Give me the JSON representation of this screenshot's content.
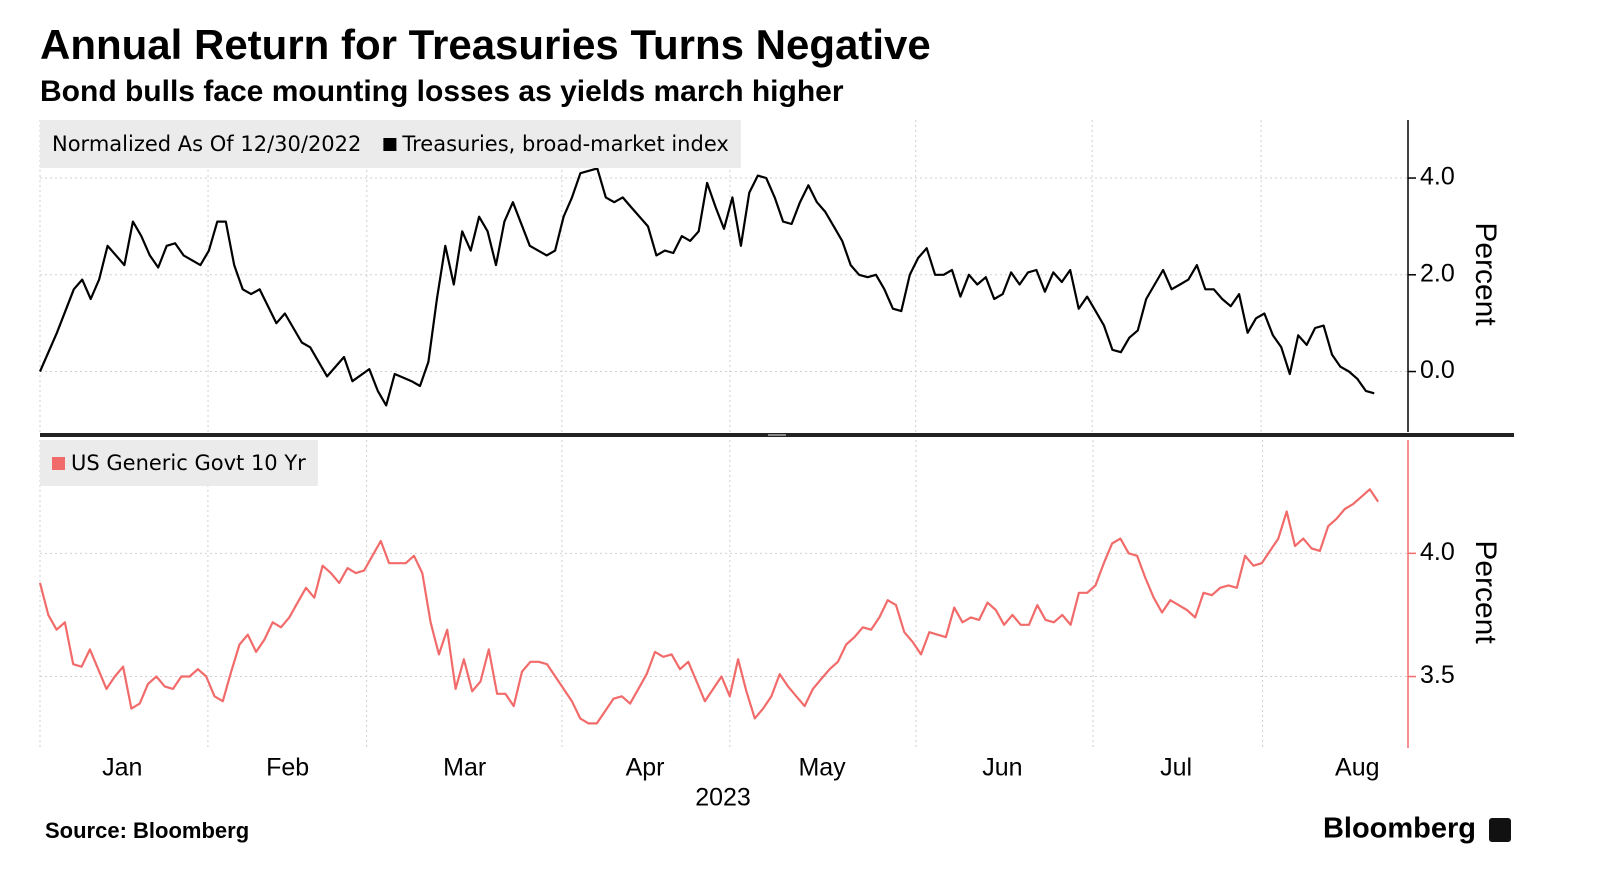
{
  "chart_data": [
    {
      "type": "line",
      "title": "Annual Return for Treasuries Turns Negative",
      "subtitle": "Bond bulls face mounting losses as yields march higher",
      "note": "Normalized As Of 12/30/2022",
      "ylabel": "Percent",
      "xlim": [
        0,
        162
      ],
      "xgrid": [
        0,
        19.9,
        38.7,
        61.8,
        81.7,
        103.7,
        124.6,
        144.6
      ],
      "ylim": [
        -1.25,
        5.2
      ],
      "yticks": [
        {
          "value": 0,
          "label": "0.0"
        },
        {
          "value": 2,
          "label": "2.0"
        },
        {
          "value": 4,
          "label": "4.0"
        }
      ],
      "grid": true,
      "axis_color": "#000000",
      "x": [
        0,
        2,
        4,
        5,
        6,
        7,
        8,
        10,
        11,
        12,
        13,
        14,
        15,
        16,
        17,
        19,
        20,
        21,
        22,
        23,
        24,
        25,
        26,
        28,
        29,
        31,
        32,
        34,
        36,
        37,
        39,
        40,
        41,
        42,
        44,
        45,
        46,
        47,
        48,
        49,
        50,
        51,
        52,
        53,
        54,
        55,
        56,
        58,
        60,
        61,
        62,
        63,
        64,
        66,
        67,
        68,
        69,
        70,
        72,
        73,
        74,
        75,
        76,
        77,
        78,
        79,
        80,
        81,
        82,
        83,
        84,
        85,
        86,
        87,
        88,
        89,
        90,
        91,
        92,
        93,
        94,
        95,
        96,
        97,
        98,
        99,
        100,
        101,
        102,
        103,
        104,
        105,
        106,
        107,
        108,
        109,
        110,
        111,
        112,
        113,
        114,
        115,
        116,
        117,
        118,
        119,
        120,
        121,
        122,
        123,
        124,
        125,
        126,
        127,
        128,
        129,
        130,
        131,
        133,
        134,
        135,
        136,
        137,
        138,
        139,
        140,
        141,
        142,
        143,
        144,
        145,
        146,
        147,
        148,
        149,
        150,
        151,
        152,
        153,
        154,
        155,
        156,
        157,
        158
      ],
      "series": [
        {
          "name": "Treasuries, broad-market index",
          "color": "#000000",
          "values": [
            0,
            0.8,
            1.7,
            1.9,
            1.5,
            1.9,
            2.6,
            2.2,
            3.1,
            2.8,
            2.4,
            2.15,
            2.6,
            2.65,
            2.4,
            2.2,
            2.5,
            3.1,
            3.1,
            2.2,
            1.7,
            1.6,
            1.7,
            1.0,
            1.2,
            0.6,
            0.5,
            -0.1,
            0.3,
            -0.2,
            0.05,
            -0.4,
            -0.7,
            -0.05,
            -0.2,
            -0.3,
            0.2,
            1.5,
            2.6,
            1.8,
            2.9,
            2.5,
            3.2,
            2.9,
            2.2,
            3.1,
            3.5,
            2.6,
            2.4,
            2.5,
            3.2,
            3.6,
            4.1,
            4.2,
            3.6,
            3.5,
            3.6,
            3.4,
            3.0,
            2.4,
            2.5,
            2.45,
            2.8,
            2.7,
            2.9,
            3.9,
            3.4,
            2.95,
            3.6,
            2.6,
            3.7,
            4.05,
            4.0,
            3.6,
            3.1,
            3.05,
            3.5,
            3.85,
            3.5,
            3.3,
            3.0,
            2.7,
            2.2,
            2.0,
            1.95,
            2.0,
            1.7,
            1.3,
            1.25,
            2.0,
            2.35,
            2.55,
            2.0,
            2.0,
            2.1,
            1.55,
            2.0,
            1.8,
            1.95,
            1.5,
            1.6,
            2.05,
            1.8,
            2.05,
            2.1,
            1.65,
            2.05,
            1.85,
            2.1,
            1.3,
            1.55,
            1.25,
            0.95,
            0.45,
            0.4,
            0.7,
            0.85,
            1.5,
            2.1,
            1.7,
            1.8,
            1.9,
            2.2,
            1.7,
            1.7,
            1.5,
            1.35,
            1.6,
            0.8,
            1.1,
            1.2,
            0.75,
            0.5,
            -0.05,
            0.75,
            0.55,
            0.9,
            0.95,
            0.35,
            0.1,
            0.0,
            -0.15,
            -0.4,
            -0.45
          ]
        }
      ]
    },
    {
      "type": "line",
      "ylabel": "Percent",
      "xlabel": "2023",
      "xlim": [
        0,
        164.6
      ],
      "xgrid": [
        0,
        20.2,
        39.3,
        62.8,
        83.0,
        105.4,
        126.7,
        147.1
      ],
      "xticks": [
        {
          "value": 9.9,
          "label": "Jan"
        },
        {
          "value": 29.8,
          "label": "Feb"
        },
        {
          "value": 51.1,
          "label": "Mar"
        },
        {
          "value": 72.8,
          "label": "Apr"
        },
        {
          "value": 94.1,
          "label": "May"
        },
        {
          "value": 115.8,
          "label": "Jun"
        },
        {
          "value": 136.7,
          "label": "Jul"
        },
        {
          "value": 158.5,
          "label": "Aug"
        }
      ],
      "ylim": [
        3.21,
        4.46
      ],
      "yticks": [
        {
          "value": 3.5,
          "label": "3.5"
        },
        {
          "value": 4,
          "label": "4.0"
        }
      ],
      "grid": true,
      "axis_color": "#f26b6b",
      "x": [
        0,
        1,
        2,
        3,
        4,
        5,
        6,
        7,
        8,
        9,
        10,
        11,
        12,
        13,
        14,
        15,
        16,
        17,
        18,
        19,
        20,
        21,
        22,
        23,
        24,
        25,
        26,
        27,
        28,
        29,
        30,
        31,
        32,
        33,
        34,
        35,
        36,
        37,
        38,
        39,
        40,
        41,
        42,
        43,
        44,
        45,
        46,
        47,
        48,
        49,
        50,
        51,
        52,
        53,
        54,
        55,
        56,
        57,
        58,
        59,
        60,
        61,
        62,
        63,
        64,
        65,
        66,
        67,
        68,
        69,
        70,
        71,
        72,
        73,
        74,
        75,
        76,
        77,
        78,
        79,
        80,
        81,
        82,
        83,
        84,
        85,
        86,
        87,
        88,
        89,
        90,
        91,
        92,
        93,
        94,
        95,
        96,
        97,
        98,
        99,
        100,
        101,
        102,
        103,
        104,
        105,
        106,
        107,
        108,
        109,
        110,
        111,
        112,
        113,
        114,
        115,
        116,
        117,
        118,
        119,
        120,
        121,
        122,
        123,
        124,
        125,
        126,
        127,
        128,
        129,
        130,
        131,
        132,
        133,
        134,
        135,
        136,
        137,
        138,
        139,
        140,
        141,
        142,
        143,
        144,
        145,
        146,
        147,
        148,
        149,
        150,
        151,
        152,
        153,
        154,
        155,
        156,
        157,
        158,
        159,
        160,
        161
      ],
      "series": [
        {
          "name": "US Generic Govt 10 Yr",
          "color": "#f26b6b",
          "values": [
            3.88,
            3.75,
            3.69,
            3.72,
            3.55,
            3.54,
            3.61,
            3.53,
            3.45,
            3.5,
            3.54,
            3.37,
            3.39,
            3.47,
            3.5,
            3.46,
            3.45,
            3.5,
            3.5,
            3.53,
            3.5,
            3.42,
            3.4,
            3.52,
            3.63,
            3.67,
            3.6,
            3.65,
            3.72,
            3.7,
            3.74,
            3.8,
            3.86,
            3.82,
            3.95,
            3.92,
            3.88,
            3.94,
            3.92,
            3.93,
            3.99,
            4.05,
            3.96,
            3.96,
            3.96,
            3.99,
            3.92,
            3.72,
            3.59,
            3.69,
            3.45,
            3.57,
            3.44,
            3.48,
            3.61,
            3.43,
            3.43,
            3.38,
            3.52,
            3.56,
            3.56,
            3.55,
            3.5,
            3.45,
            3.4,
            3.33,
            3.31,
            3.31,
            3.36,
            3.41,
            3.42,
            3.39,
            3.45,
            3.51,
            3.6,
            3.58,
            3.59,
            3.53,
            3.56,
            3.48,
            3.4,
            3.45,
            3.5,
            3.42,
            3.57,
            3.44,
            3.33,
            3.37,
            3.42,
            3.51,
            3.46,
            3.42,
            3.38,
            3.45,
            3.49,
            3.53,
            3.56,
            3.63,
            3.66,
            3.7,
            3.69,
            3.74,
            3.81,
            3.79,
            3.68,
            3.64,
            3.59,
            3.68,
            3.67,
            3.66,
            3.78,
            3.72,
            3.74,
            3.73,
            3.8,
            3.77,
            3.71,
            3.75,
            3.71,
            3.71,
            3.79,
            3.73,
            3.72,
            3.75,
            3.71,
            3.84,
            3.84,
            3.87,
            3.96,
            4.04,
            4.06,
            4.0,
            3.99,
            3.9,
            3.82,
            3.76,
            3.81,
            3.79,
            3.77,
            3.74,
            3.84,
            3.83,
            3.86,
            3.87,
            3.86,
            3.99,
            3.95,
            3.96,
            4.01,
            4.06,
            4.17,
            4.03,
            4.06,
            4.02,
            4.01,
            4.11,
            4.14,
            4.18,
            4.2,
            4.23,
            4.26,
            4.21
          ]
        }
      ]
    }
  ],
  "source": "Source: Bloomberg",
  "brand": "Bloomberg"
}
